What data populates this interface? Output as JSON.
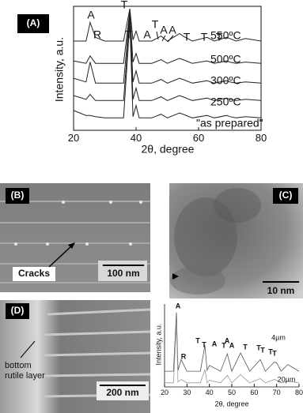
{
  "chart_data": [
    {
      "type": "line",
      "xlabel": "2θ, degree",
      "ylabel": "Intensity, a.u.",
      "x": [
        20,
        24,
        25.3,
        27,
        30,
        36,
        38,
        39,
        40,
        41,
        45,
        48,
        50,
        53.9,
        55,
        58,
        62.7,
        65,
        69,
        70,
        72,
        75,
        80
      ],
      "xlim": [
        20,
        80
      ],
      "xticks": [
        20,
        40,
        60,
        80
      ],
      "ylim": [
        0,
        100
      ],
      "series": [
        {
          "name": "550ºC",
          "color": "#222222",
          "values": [
            72,
            72,
            87,
            75,
            72,
            72,
            98,
            73,
            80,
            72,
            72,
            76,
            72,
            78,
            76,
            72,
            75,
            72,
            75,
            74,
            72,
            74,
            72
          ]
        },
        {
          "name": "500ºC",
          "color": "#222222",
          "values": [
            56,
            54,
            60,
            54,
            54,
            54,
            96,
            55,
            62,
            54,
            54,
            57,
            54,
            58,
            57,
            54,
            56,
            54,
            56,
            55,
            54,
            55,
            54
          ]
        },
        {
          "name": "300ºC",
          "color": "#222222",
          "values": [
            42,
            39,
            55,
            38,
            38,
            38,
            95,
            39,
            48,
            38,
            38,
            41,
            38,
            42,
            41,
            38,
            40,
            38,
            40,
            39,
            38,
            39,
            38
          ]
        },
        {
          "name": "250ºC",
          "color": "#222222",
          "values": [
            28,
            25,
            29,
            24,
            24,
            24,
            90,
            25,
            34,
            24,
            24,
            27,
            24,
            28,
            27,
            24,
            26,
            24,
            26,
            25,
            24,
            25,
            24
          ]
        },
        {
          "name": "\"as prepared\"",
          "color": "#222222",
          "values": [
            16,
            12,
            12,
            11,
            10,
            10,
            88,
            11,
            20,
            10,
            10,
            13,
            10,
            14,
            13,
            10,
            12,
            10,
            12,
            11,
            10,
            11,
            10
          ]
        }
      ],
      "annotations": [
        "A",
        "R",
        "T",
        "T",
        "A",
        "T",
        "A",
        "A",
        "T",
        "T",
        "T"
      ]
    },
    {
      "type": "line",
      "xlabel": "2θ, degree",
      "ylabel": "Intensity, a.u.",
      "x": [
        20,
        24,
        25.3,
        26,
        27.4,
        30,
        36,
        38,
        39,
        40,
        45,
        48,
        50,
        53.9,
        55,
        58,
        62.7,
        65,
        69,
        70,
        72,
        75,
        80
      ],
      "xlim": [
        20,
        80
      ],
      "xticks": [
        20,
        30,
        40,
        50,
        60,
        70,
        80
      ],
      "ylim": [
        0,
        100
      ],
      "series": [
        {
          "name": "4µm",
          "color": "#555555",
          "values": [
            19,
            19,
            90,
            20,
            33,
            19,
            19,
            50,
            20,
            26,
            19,
            40,
            19,
            41,
            35,
            19,
            33,
            19,
            30,
            29,
            19,
            27,
            19
          ]
        },
        {
          "name": "20µm",
          "color": "#999999",
          "values": [
            5,
            5,
            76,
            6,
            9,
            5,
            5,
            21,
            5,
            8,
            5,
            14,
            5,
            15,
            12,
            5,
            10,
            5,
            9,
            8,
            5,
            7,
            5
          ]
        }
      ],
      "annotations": [
        "A",
        "R",
        "T",
        "T",
        "A",
        "T",
        "A",
        "A",
        "T",
        "T",
        "T",
        "T",
        "T"
      ]
    }
  ],
  "panels": {
    "labels": [
      "(A)",
      "(B)",
      "(C)",
      "(D)"
    ],
    "b": {
      "annotation": "Cracks",
      "scale_bar": "100 nm"
    },
    "c": {
      "scale_bar": "10 nm"
    },
    "d": {
      "annotation": [
        "bottom",
        "rutile layer"
      ],
      "scale_bar": "200 nm"
    }
  }
}
